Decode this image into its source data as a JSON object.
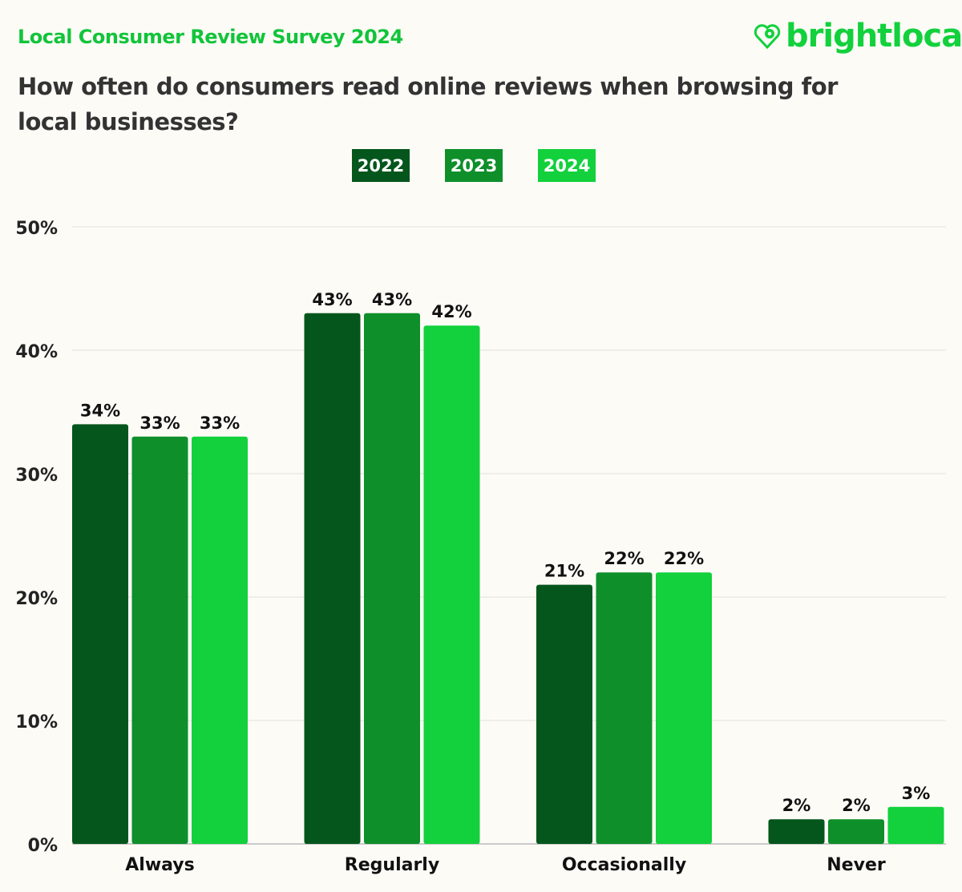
{
  "header": {
    "survey_title": "Local Consumer Review Survey 2024",
    "question": "How often do consumers read online reviews when browsing for local businesses?",
    "logo_text": "brightlocal",
    "logo_icon": "heart-pin-icon",
    "brand_color": "#12d13c"
  },
  "chart_data": {
    "type": "bar",
    "title": "How often do consumers read online reviews when browsing for local businesses?",
    "categories": [
      "Always",
      "Regularly",
      "Occasionally",
      "Never"
    ],
    "series": [
      {
        "name": "2022",
        "color": "#05561c",
        "values": [
          34,
          43,
          21,
          2
        ]
      },
      {
        "name": "2023",
        "color": "#0e8f2a",
        "values": [
          33,
          43,
          22,
          2
        ]
      },
      {
        "name": "2024",
        "color": "#12d13c",
        "values": [
          33,
          42,
          22,
          3
        ]
      }
    ],
    "ylim": [
      0,
      50
    ],
    "yticks": [
      "0%",
      "10%",
      "20%",
      "30%",
      "40%",
      "50%"
    ],
    "value_suffix": "%",
    "grid": true,
    "legend_position": "top-center"
  }
}
